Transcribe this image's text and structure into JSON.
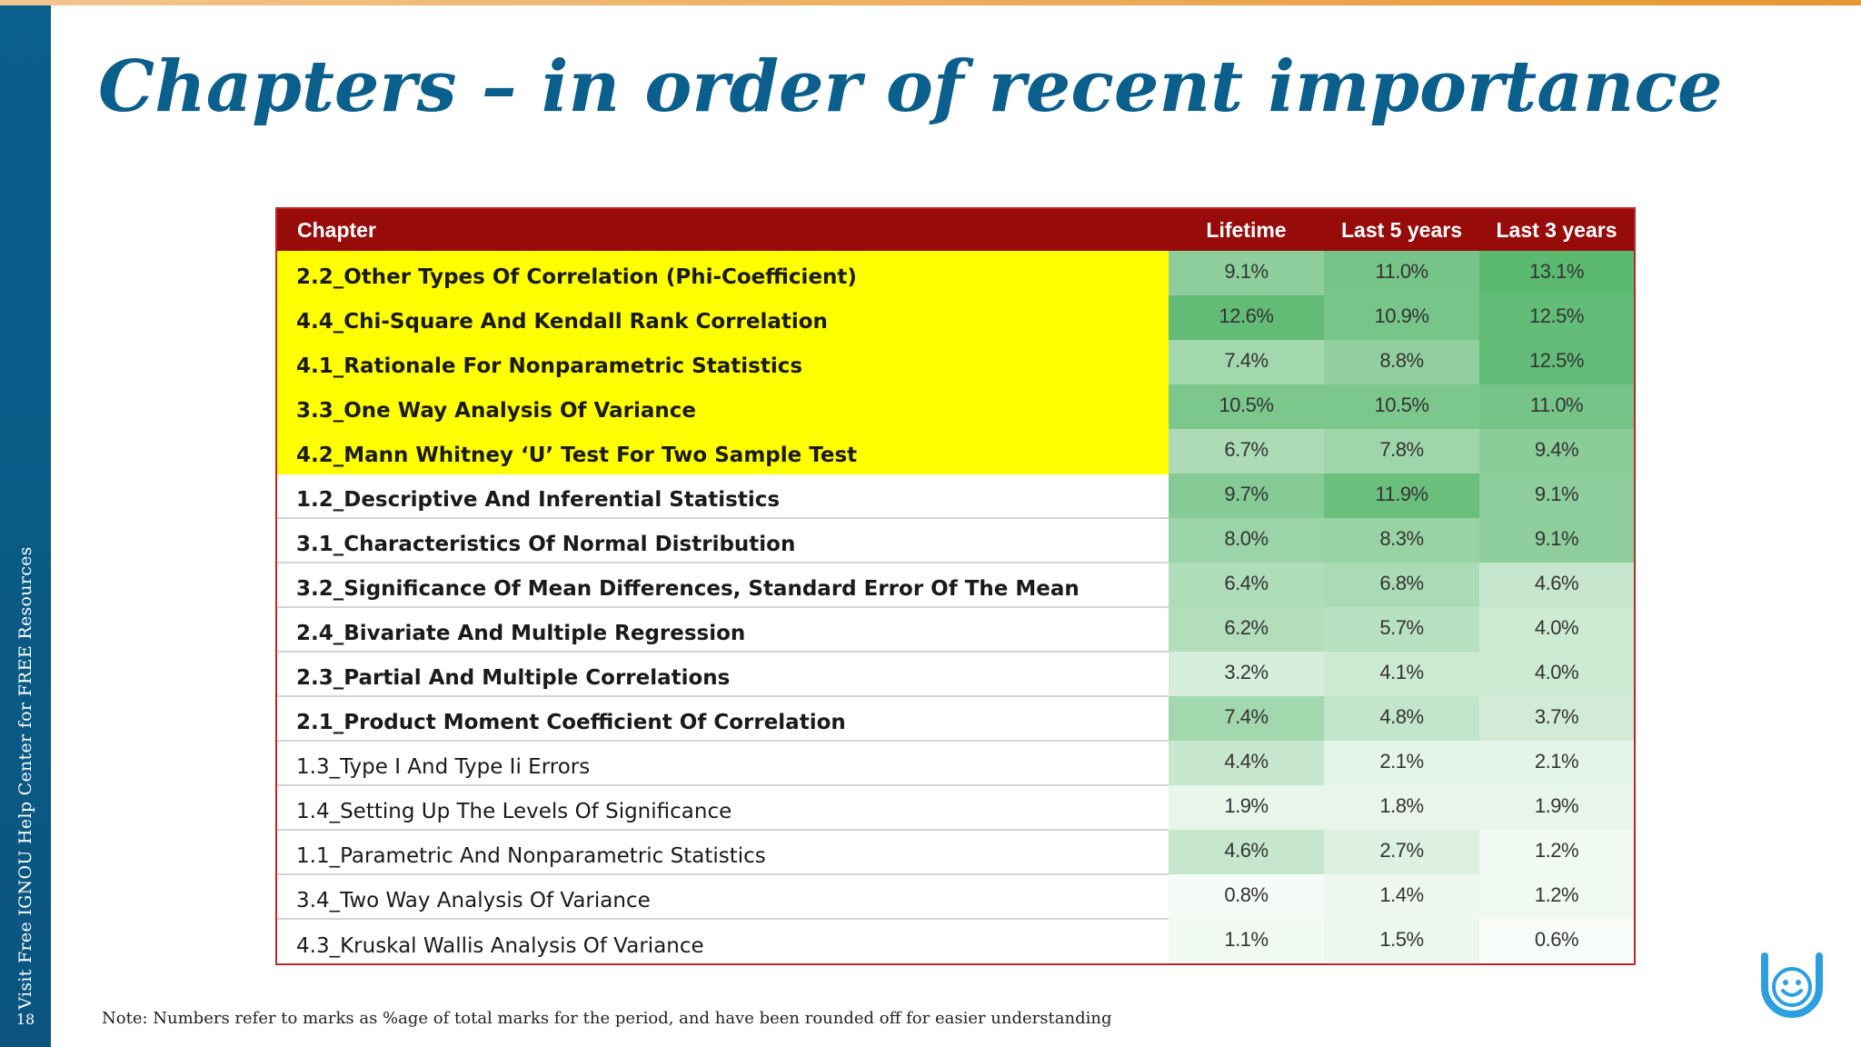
{
  "slide": {
    "title": "Chapters – in order of recent importance",
    "page_number": "18",
    "side_text": "Visit Free IGNOU Help Center for FREE Resources",
    "note": "Note: Numbers refer to marks as %age of total marks for the period, and have been rounded off for easier understanding"
  },
  "table": {
    "headers": [
      "Chapter",
      "Lifetime",
      "Last 5 years",
      "Last 3 years"
    ],
    "rows": [
      {
        "chapter": "2.2_Other Types Of Correlation (Phi-Coefficient)",
        "lifetime": "9.1%",
        "last5": "11.0%",
        "last3": "13.1%",
        "highlight": true,
        "bold": true
      },
      {
        "chapter": "4.4_Chi-Square And Kendall Rank Correlation",
        "lifetime": "12.6%",
        "last5": "10.9%",
        "last3": "12.5%",
        "highlight": true,
        "bold": true
      },
      {
        "chapter": "4.1_Rationale For Nonparametric Statistics",
        "lifetime": "7.4%",
        "last5": "8.8%",
        "last3": "12.5%",
        "highlight": true,
        "bold": true
      },
      {
        "chapter": "3.3_One Way Analysis Of Variance",
        "lifetime": "10.5%",
        "last5": "10.5%",
        "last3": "11.0%",
        "highlight": true,
        "bold": true
      },
      {
        "chapter": "4.2_Mann Whitney ‘U’ Test For Two Sample Test",
        "lifetime": "6.7%",
        "last5": "7.8%",
        "last3": "9.4%",
        "highlight": true,
        "bold": true
      },
      {
        "chapter": "1.2_Descriptive And Inferential Statistics",
        "lifetime": "9.7%",
        "last5": "11.9%",
        "last3": "9.1%",
        "highlight": false,
        "bold": true
      },
      {
        "chapter": "3.1_Characteristics Of Normal Distribution",
        "lifetime": "8.0%",
        "last5": "8.3%",
        "last3": "9.1%",
        "highlight": false,
        "bold": true
      },
      {
        "chapter": "3.2_Significance Of Mean Differences, Standard Error Of The Mean",
        "lifetime": "6.4%",
        "last5": "6.8%",
        "last3": "4.6%",
        "highlight": false,
        "bold": true
      },
      {
        "chapter": "2.4_Bivariate And Multiple Regression",
        "lifetime": "6.2%",
        "last5": "5.7%",
        "last3": "4.0%",
        "highlight": false,
        "bold": true
      },
      {
        "chapter": "2.3_Partial And Multiple Correlations",
        "lifetime": "3.2%",
        "last5": "4.1%",
        "last3": "4.0%",
        "highlight": false,
        "bold": true
      },
      {
        "chapter": "2.1_Product Moment Coefficient Of Correlation",
        "lifetime": "7.4%",
        "last5": "4.8%",
        "last3": "3.7%",
        "highlight": false,
        "bold": true
      },
      {
        "chapter": "1.3_Type I And Type Ii Errors",
        "lifetime": "4.4%",
        "last5": "2.1%",
        "last3": "2.1%",
        "highlight": false,
        "bold": false
      },
      {
        "chapter": "1.4_Setting Up The Levels Of Significance",
        "lifetime": "1.9%",
        "last5": "1.8%",
        "last3": "1.9%",
        "highlight": false,
        "bold": false
      },
      {
        "chapter": "1.1_Parametric And Nonparametric Statistics",
        "lifetime": "4.6%",
        "last5": "2.7%",
        "last3": "1.2%",
        "highlight": false,
        "bold": false
      },
      {
        "chapter": "3.4_Two Way Analysis Of Variance",
        "lifetime": "0.8%",
        "last5": "1.4%",
        "last3": "1.2%",
        "highlight": false,
        "bold": false
      },
      {
        "chapter": "4.3_Kruskal Wallis Analysis Of Variance",
        "lifetime": "1.1%",
        "last5": "1.5%",
        "last3": "0.6%",
        "highlight": false,
        "bold": false
      }
    ]
  },
  "colors": {
    "title": "#0b5f8c",
    "header_bg": "#980b0b",
    "highlight": "#ffff00",
    "heat_low": "#ffffff",
    "heat_high": "#5cb970"
  },
  "icons": [
    "smiley-logo-icon"
  ]
}
